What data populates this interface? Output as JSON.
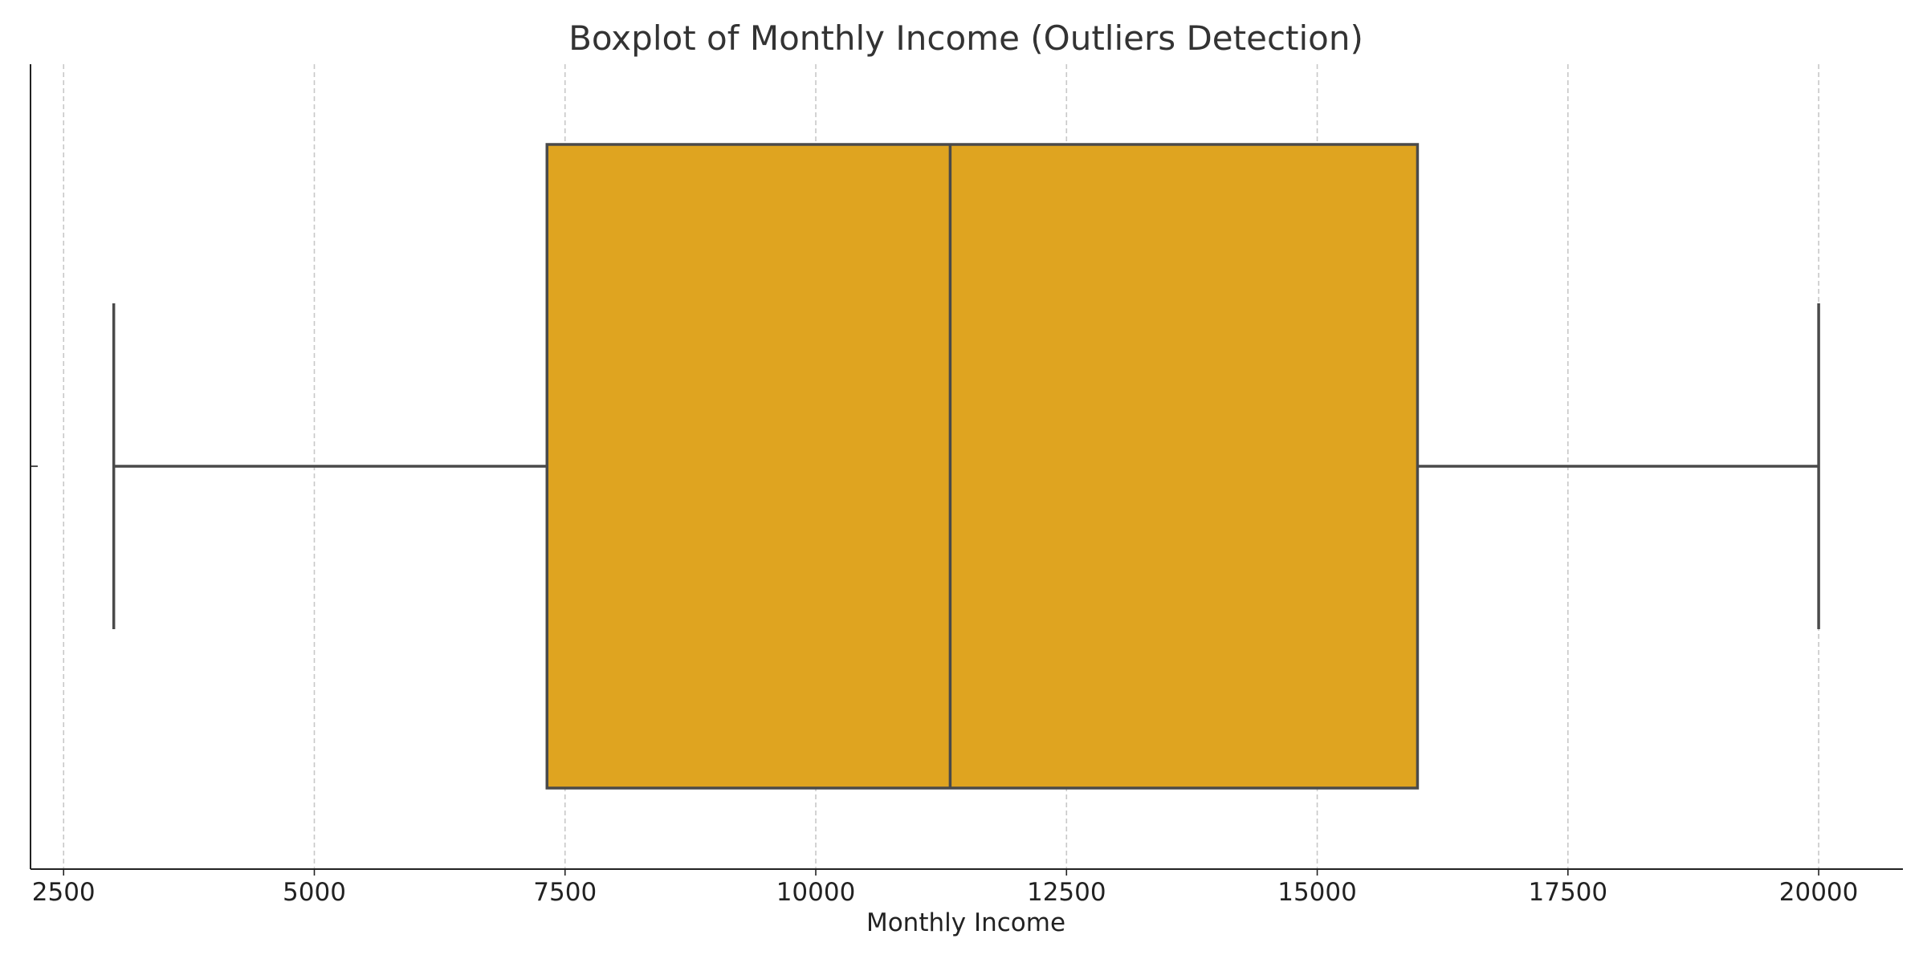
{
  "chart_data": {
    "type": "boxplot",
    "title": "Boxplot of Monthly Income (Outliers Detection)",
    "xlabel": "Monthly Income",
    "ylabel": "",
    "orientation": "horizontal",
    "xlim": [
      2170,
      20840
    ],
    "xticks": [
      2500,
      5000,
      7500,
      10000,
      12500,
      15000,
      17500,
      20000
    ],
    "grid": "vertical dashed",
    "legend": "none",
    "box": {
      "whisker_low": 3000,
      "q1": 7320,
      "median": 11340,
      "q3": 16000,
      "whisker_high": 20000
    },
    "colors": {
      "box_fill": "#dfa420",
      "box_edge": "#4a4a4a",
      "grid": "#c8c8c8",
      "axis": "#222222"
    }
  }
}
